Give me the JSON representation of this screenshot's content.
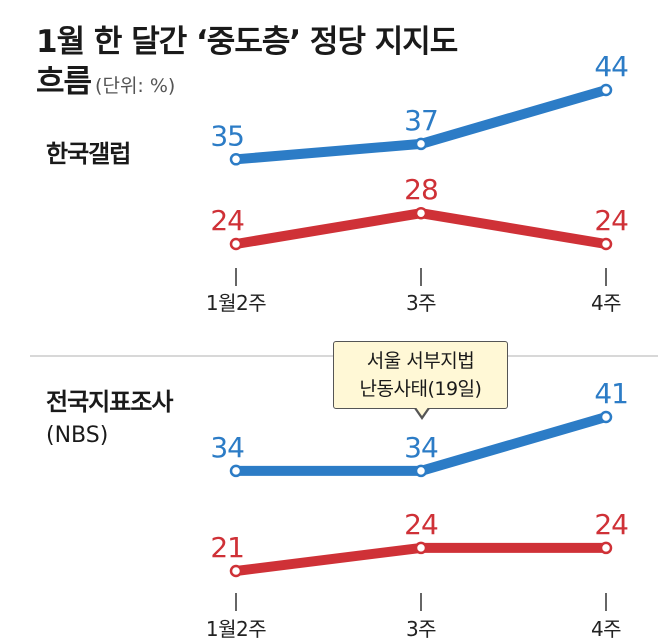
{
  "title": "1월 한 달간 ‘중도층’ 정당 지지도",
  "title_line2": "흐름",
  "unit": "(단위: %)",
  "colors": {
    "blue": "#2c7cc6",
    "red": "#cf3137",
    "axis": "#333333",
    "divider": "#cccccc"
  },
  "callout": {
    "line1": "서울 서부지법",
    "line2": "난동사태(19일)"
  },
  "chart_data": [
    {
      "type": "line",
      "title": "한국갤럽",
      "categories": [
        "1월2주",
        "3주",
        "4주"
      ],
      "series": [
        {
          "color": "#2c7cc6",
          "values": [
            35,
            37,
            44
          ]
        },
        {
          "color": "#cf3137",
          "values": [
            24,
            28,
            24
          ]
        }
      ]
    },
    {
      "type": "line",
      "title": "전국지표조사",
      "subtitle": "(NBS)",
      "categories": [
        "1월2주",
        "3주",
        "4주"
      ],
      "series": [
        {
          "color": "#2c7cc6",
          "values": [
            34,
            34,
            41
          ]
        },
        {
          "color": "#cf3137",
          "values": [
            21,
            24,
            24
          ]
        }
      ]
    }
  ]
}
